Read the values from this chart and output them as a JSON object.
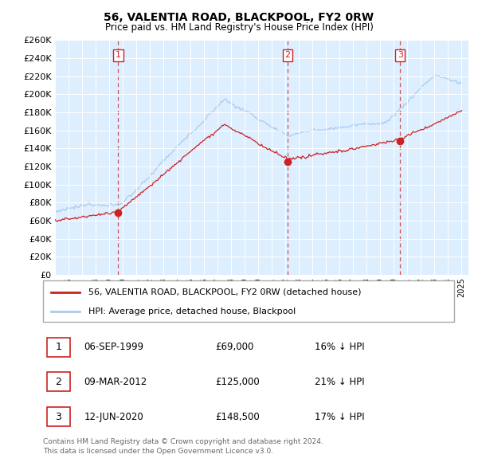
{
  "title": "56, VALENTIA ROAD, BLACKPOOL, FY2 0RW",
  "subtitle": "Price paid vs. HM Land Registry's House Price Index (HPI)",
  "legend_line1": "56, VALENTIA ROAD, BLACKPOOL, FY2 0RW (detached house)",
  "legend_line2": "HPI: Average price, detached house, Blackpool",
  "hpi_color": "#aaccee",
  "price_color": "#cc2222",
  "background_color": "#ddeeff",
  "outer_bg": "#ffffff",
  "grid_color": "#ffffff",
  "ylim": [
    0,
    260000
  ],
  "yticks": [
    0,
    20000,
    40000,
    60000,
    80000,
    100000,
    120000,
    140000,
    160000,
    180000,
    200000,
    220000,
    240000,
    260000
  ],
  "sales": [
    {
      "num": 1,
      "date": "06-SEP-1999",
      "price": 69000,
      "price_str": "£69,000",
      "pct": "16%"
    },
    {
      "num": 2,
      "date": "09-MAR-2012",
      "price": 125000,
      "price_str": "£125,000",
      "pct": "21%"
    },
    {
      "num": 3,
      "date": "12-JUN-2020",
      "price": 148500,
      "price_str": "£148,500",
      "pct": "17%"
    }
  ],
  "sale_years": [
    1999.667,
    2012.167,
    2020.458
  ],
  "footer_line1": "Contains HM Land Registry data © Crown copyright and database right 2024.",
  "footer_line2": "This data is licensed under the Open Government Licence v3.0.",
  "year_start": 1995,
  "year_end": 2025
}
